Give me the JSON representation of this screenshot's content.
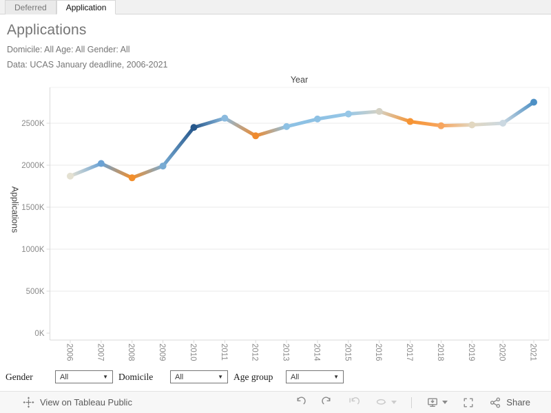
{
  "tabs": [
    {
      "label": "Deferred",
      "active": false
    },
    {
      "label": "Application",
      "active": true
    }
  ],
  "header": {
    "title": "Applications",
    "subtitle_line1": "Domicile: All Age: All Gender: All",
    "subtitle_line2": "Data: UCAS January deadline, 2006-2021"
  },
  "chart_data": {
    "type": "line",
    "title": "Year",
    "xlabel": "Year",
    "ylabel": "Applications",
    "units": "K",
    "categories": [
      "2006",
      "2007",
      "2008",
      "2009",
      "2010",
      "2011",
      "2012",
      "2013",
      "2014",
      "2015",
      "2016",
      "2017",
      "2018",
      "2019",
      "2020",
      "2021"
    ],
    "series": [
      {
        "name": "Applications",
        "values": [
          1870,
          2020,
          1850,
          1990,
          2450,
          2560,
          2350,
          2460,
          2550,
          2610,
          2640,
          2520,
          2470,
          2480,
          2500,
          2750
        ]
      }
    ],
    "point_colors": [
      "#e4e1d2",
      "#6aa2d5",
      "#f28e2b",
      "#78abd3",
      "#26578b",
      "#8bbade",
      "#ef8a2e",
      "#8dc1e4",
      "#8dc1e4",
      "#97c7e7",
      "#d4d1c4",
      "#f69434",
      "#f7a55e",
      "#e2d7c0",
      "#cbd8e1",
      "#4d90c5"
    ],
    "color_encoding": "year-over-year change: blue = increase, orange = decrease",
    "yticks": [
      0,
      500,
      1000,
      1500,
      2000,
      2500
    ],
    "ytick_labels": [
      "0K",
      "500K",
      "1000K",
      "1500K",
      "2000K",
      "2500K"
    ],
    "ylim": [
      0,
      2950
    ],
    "grid": "horizontal",
    "legend": "none",
    "axis_color": "#d9d9d9",
    "grid_color": "#e9e9e9",
    "tick_label_color": "#8a8a8a"
  },
  "filters": {
    "gender": {
      "label": "Gender",
      "value": "All"
    },
    "domicile": {
      "label": "Domicile",
      "value": "All"
    },
    "age_group": {
      "label": "Age group",
      "value": "All"
    }
  },
  "footer": {
    "view_link": "View on Tableau Public",
    "share_label": "Share"
  }
}
